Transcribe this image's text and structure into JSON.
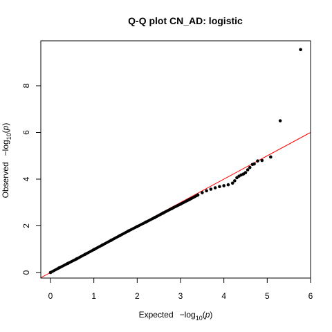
{
  "chart_data": {
    "type": "scatter",
    "title": "Q-Q plot CN_AD: logistic",
    "xlabel": {
      "prefix": "Expected",
      "minus": "−log",
      "sub": "10",
      "open": "(",
      "var": "p",
      "close": ")"
    },
    "ylabel": {
      "prefix": "Observed",
      "minus": "−log",
      "sub": "10",
      "open": "(",
      "var": "p",
      "close": ")"
    },
    "xlim": [
      0,
      6
    ],
    "ylim": [
      0,
      9.5
    ],
    "x_ticks": [
      0,
      1,
      2,
      3,
      4,
      5,
      6
    ],
    "y_ticks": [
      0,
      2,
      4,
      6,
      8
    ],
    "grid": false,
    "reference_line": {
      "slope": 1,
      "intercept": 0,
      "color": "#ff0000"
    },
    "point_color": "#000000",
    "series": [
      {
        "points": [
          [
            0.0,
            0.0
          ],
          [
            0.2,
            0.2
          ],
          [
            0.4,
            0.39
          ],
          [
            0.6,
            0.58
          ],
          [
            0.8,
            0.78
          ],
          [
            1.0,
            0.98
          ],
          [
            1.2,
            1.18
          ],
          [
            1.4,
            1.38
          ],
          [
            1.6,
            1.58
          ],
          [
            1.8,
            1.78
          ],
          [
            2.0,
            1.97
          ],
          [
            2.2,
            2.16
          ],
          [
            2.4,
            2.35
          ],
          [
            2.6,
            2.55
          ],
          [
            2.8,
            2.74
          ],
          [
            3.0,
            2.93
          ],
          [
            3.2,
            3.12
          ],
          [
            3.4,
            3.32
          ],
          [
            3.5,
            3.42
          ],
          [
            3.6,
            3.5
          ],
          [
            3.7,
            3.57
          ],
          [
            3.8,
            3.63
          ],
          [
            3.9,
            3.68
          ],
          [
            4.0,
            3.72
          ],
          [
            4.1,
            3.76
          ],
          [
            4.2,
            3.83
          ],
          [
            4.25,
            3.93
          ],
          [
            4.3,
            4.06
          ],
          [
            4.35,
            4.13
          ],
          [
            4.4,
            4.18
          ],
          [
            4.45,
            4.22
          ],
          [
            4.5,
            4.28
          ],
          [
            4.55,
            4.4
          ],
          [
            4.6,
            4.5
          ],
          [
            4.66,
            4.63
          ],
          [
            4.7,
            4.65
          ],
          [
            4.78,
            4.78
          ],
          [
            4.88,
            4.8
          ],
          [
            5.08,
            4.95
          ],
          [
            5.3,
            6.5
          ],
          [
            5.77,
            9.55
          ]
        ]
      }
    ]
  }
}
